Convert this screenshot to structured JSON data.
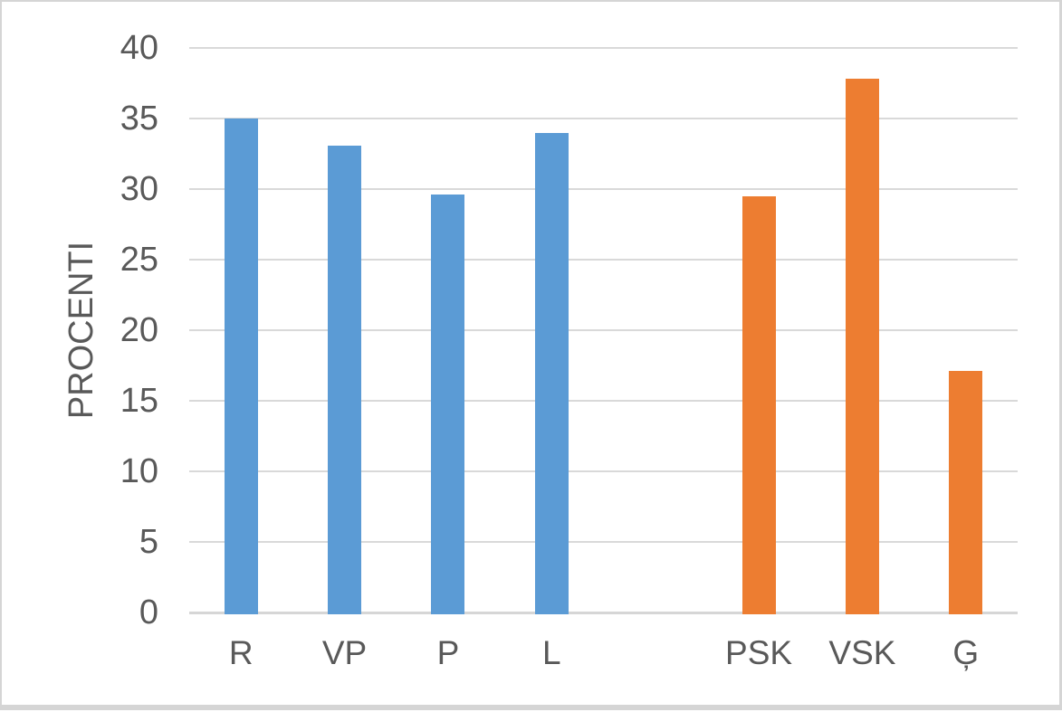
{
  "frame": {
    "background": "#ffffff",
    "border_color": "#d5d5d5"
  },
  "chart_data": {
    "type": "bar",
    "title": "",
    "xlabel": "",
    "ylabel": "PROCENTI",
    "ylim": [
      0,
      40
    ],
    "ytick_interval": 5,
    "yticks": [
      0,
      5,
      10,
      15,
      20,
      25,
      30,
      35,
      40
    ],
    "categories": [
      "R",
      "VP",
      "P",
      "L",
      "",
      "PSK",
      "VSK",
      "Ģ"
    ],
    "values": [
      35.0,
      33.1,
      29.6,
      34.0,
      null,
      29.5,
      37.8,
      17.1
    ],
    "bar_colors": [
      "#5B9BD5",
      "#5B9BD5",
      "#5B9BD5",
      "#5B9BD5",
      null,
      "#ED7D31",
      "#ED7D31",
      "#ED7D31"
    ],
    "series_colors": {
      "blue_group": "#5B9BD5",
      "orange_group": "#ED7D31"
    },
    "grid": true,
    "gridline_color": "#d9d9d9",
    "axis_line_color": "#d6d6d6",
    "axis_text_color": "#595959",
    "legend": "none"
  }
}
